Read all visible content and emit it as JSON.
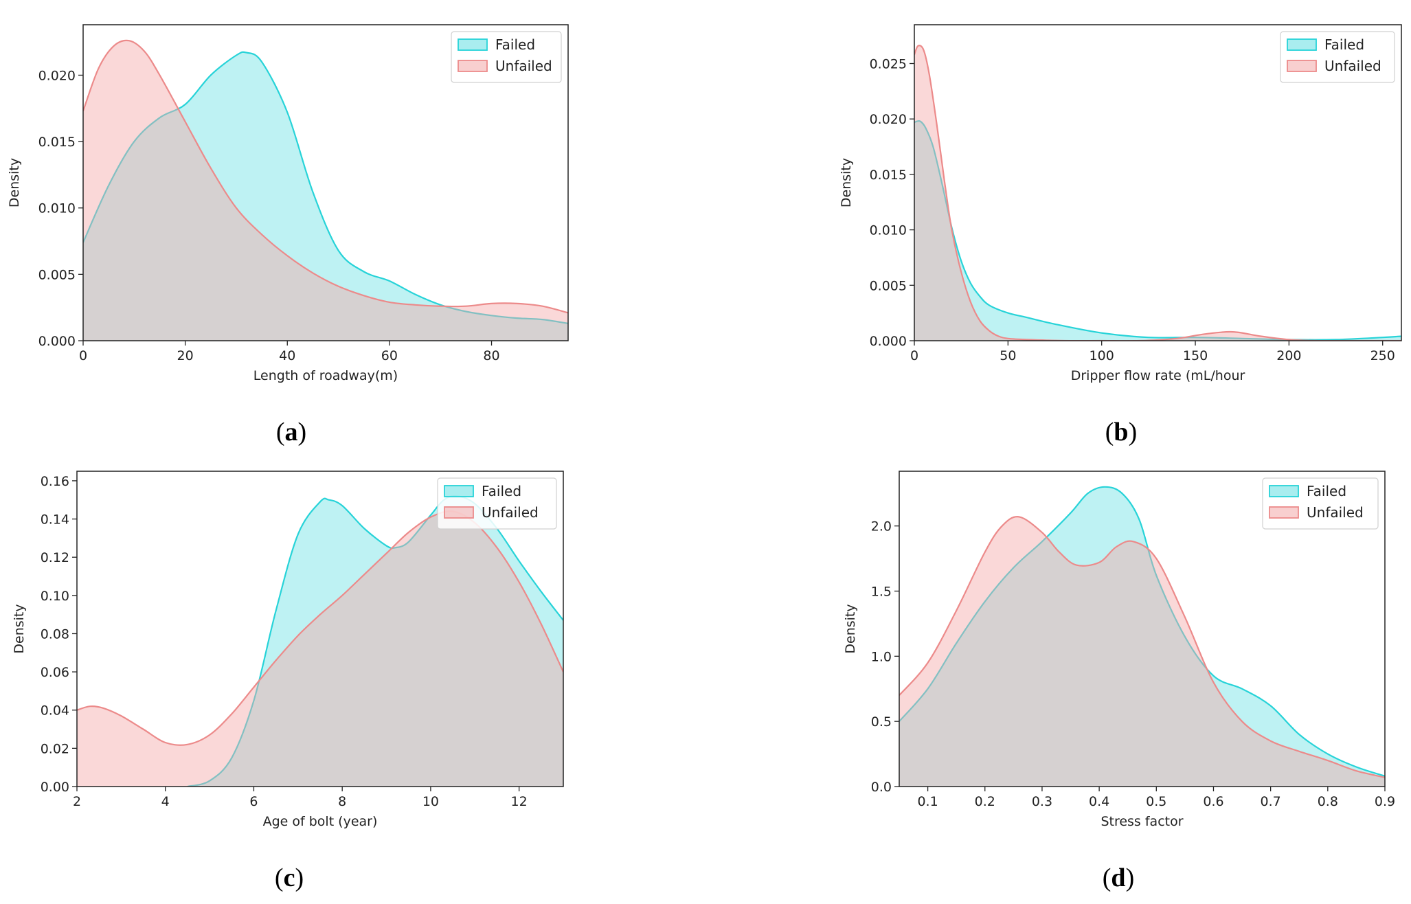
{
  "colors": {
    "failed_line": "#27d3d8",
    "failed_fill": "#27d3d8",
    "unfailed_line": "#ec8a8a",
    "unfailed_fill": "#f3a8a8"
  },
  "chart_data": [
    {
      "id": "a",
      "type": "area",
      "caption": "a",
      "xlabel": "Length of roadway(m)",
      "ylabel": "Density",
      "xlim": [
        0,
        95
      ],
      "ylim": [
        0,
        0.0238
      ],
      "xticks": [
        0,
        20,
        40,
        60,
        80
      ],
      "xtick_labels": [
        "0",
        "20",
        "40",
        "60",
        "80"
      ],
      "yticks": [
        0,
        0.005,
        0.01,
        0.015,
        0.02
      ],
      "ytick_labels": [
        "0.000",
        "0.005",
        "0.010",
        "0.015",
        "0.020"
      ],
      "legend": [
        "Failed",
        "Unfailed"
      ],
      "legend_position": "top-right",
      "series": [
        {
          "name": "Failed",
          "x": [
            0,
            5,
            10,
            15,
            20,
            25,
            30,
            32,
            35,
            40,
            45,
            50,
            55,
            60,
            65,
            70,
            75,
            80,
            85,
            90,
            95
          ],
          "y": [
            0.0074,
            0.0117,
            0.015,
            0.0168,
            0.0178,
            0.02,
            0.0215,
            0.0217,
            0.021,
            0.0172,
            0.0112,
            0.0068,
            0.0052,
            0.0045,
            0.0035,
            0.0027,
            0.0022,
            0.0019,
            0.0017,
            0.0016,
            0.0013
          ]
        },
        {
          "name": "Unfailed",
          "x": [
            0,
            3,
            6,
            9,
            12,
            15,
            20,
            25,
            30,
            35,
            40,
            45,
            50,
            55,
            60,
            65,
            70,
            75,
            80,
            85,
            90,
            95
          ],
          "y": [
            0.0173,
            0.0205,
            0.0222,
            0.0226,
            0.0218,
            0.02,
            0.0165,
            0.013,
            0.01,
            0.008,
            0.0064,
            0.0051,
            0.0041,
            0.0034,
            0.0029,
            0.0027,
            0.0026,
            0.0026,
            0.0028,
            0.0028,
            0.0026,
            0.0021
          ]
        }
      ]
    },
    {
      "id": "b",
      "type": "area",
      "caption": "b",
      "xlabel": "Dripper flow rate (mL/hour",
      "ylabel": "Density",
      "xlim": [
        0,
        260
      ],
      "ylim": [
        0,
        0.0285
      ],
      "xticks": [
        0,
        50,
        100,
        150,
        200,
        250
      ],
      "xtick_labels": [
        "0",
        "50",
        "100",
        "150",
        "200",
        "250"
      ],
      "yticks": [
        0,
        0.005,
        0.01,
        0.015,
        0.02,
        0.025
      ],
      "ytick_labels": [
        "0.000",
        "0.005",
        "0.010",
        "0.015",
        "0.020",
        "0.025"
      ],
      "legend": [
        "Failed",
        "Unfailed"
      ],
      "legend_position": "top-right",
      "series": [
        {
          "name": "Failed",
          "x": [
            0,
            3,
            6,
            10,
            15,
            20,
            25,
            30,
            35,
            40,
            50,
            60,
            75,
            100,
            125,
            150,
            175,
            200,
            225,
            250,
            260
          ],
          "y": [
            0.0197,
            0.0198,
            0.0192,
            0.0175,
            0.014,
            0.0102,
            0.0072,
            0.0052,
            0.004,
            0.0032,
            0.0025,
            0.0021,
            0.0015,
            0.0007,
            0.0003,
            0.0003,
            0.0002,
            0.0001,
            0.0001,
            0.0003,
            0.0004
          ]
        },
        {
          "name": "Unfailed",
          "x": [
            0,
            2,
            5,
            8,
            12,
            16,
            20,
            25,
            30,
            35,
            40,
            45,
            50,
            60,
            80,
            100,
            120,
            140,
            155,
            170,
            185,
            200,
            215,
            230,
            260
          ],
          "y": [
            0.0258,
            0.0266,
            0.0262,
            0.024,
            0.0195,
            0.0145,
            0.01,
            0.0062,
            0.0035,
            0.0018,
            0.0009,
            0.0004,
            0.0002,
            0.0001,
            0,
            0,
            0,
            0.0002,
            0.0006,
            0.0008,
            0.0004,
            0.0001,
            0,
            0,
            0
          ]
        }
      ]
    },
    {
      "id": "c",
      "type": "area",
      "caption": "c",
      "xlabel": "Age of bolt  (year)",
      "ylabel": "Density",
      "xlim": [
        2,
        13
      ],
      "ylim": [
        0,
        0.165
      ],
      "xticks": [
        2,
        4,
        6,
        8,
        10,
        12
      ],
      "xtick_labels": [
        "2",
        "4",
        "6",
        "8",
        "10",
        "12"
      ],
      "yticks": [
        0,
        0.02,
        0.04,
        0.06,
        0.08,
        0.1,
        0.12,
        0.14,
        0.16
      ],
      "ytick_labels": [
        "0.00",
        "0.02",
        "0.04",
        "0.06",
        "0.08",
        "0.10",
        "0.12",
        "0.14",
        "0.16"
      ],
      "legend": [
        "Failed",
        "Unfailed"
      ],
      "legend_position": "top-right",
      "series": [
        {
          "name": "Failed",
          "x": [
            4.5,
            5.0,
            5.5,
            6.0,
            6.5,
            7.0,
            7.5,
            7.7,
            8.0,
            8.5,
            9.0,
            9.2,
            9.5,
            10.0,
            10.3,
            10.6,
            11.0,
            11.5,
            12.0,
            12.5,
            13.0
          ],
          "y": [
            0,
            0.003,
            0.015,
            0.045,
            0.092,
            0.132,
            0.149,
            0.15,
            0.147,
            0.135,
            0.126,
            0.125,
            0.128,
            0.142,
            0.15,
            0.152,
            0.148,
            0.135,
            0.118,
            0.102,
            0.087
          ]
        },
        {
          "name": "Unfailed",
          "x": [
            2.0,
            2.3,
            2.6,
            3.0,
            3.5,
            4.0,
            4.5,
            5.0,
            5.5,
            6.0,
            6.5,
            7.0,
            7.5,
            8.0,
            8.5,
            9.0,
            9.5,
            10.0,
            10.5,
            11.0,
            11.5,
            12.0,
            12.5,
            13.0
          ],
          "y": [
            0.04,
            0.042,
            0.041,
            0.037,
            0.03,
            0.023,
            0.022,
            0.027,
            0.038,
            0.052,
            0.066,
            0.079,
            0.09,
            0.1,
            0.111,
            0.122,
            0.133,
            0.141,
            0.144,
            0.138,
            0.125,
            0.107,
            0.085,
            0.06
          ]
        }
      ]
    },
    {
      "id": "d",
      "type": "area",
      "caption": "d",
      "xlabel": "Stress factor",
      "ylabel": "Density",
      "xlim": [
        0.05,
        0.9
      ],
      "ylim": [
        0,
        2.42
      ],
      "xticks": [
        0.1,
        0.2,
        0.3,
        0.4,
        0.5,
        0.6,
        0.7,
        0.8,
        0.9
      ],
      "xtick_labels": [
        "0.1",
        "0.2",
        "0.3",
        "0.4",
        "0.5",
        "0.6",
        "0.7",
        "0.8",
        "0.9"
      ],
      "yticks": [
        0,
        0.5,
        1.0,
        1.5,
        2.0
      ],
      "ytick_labels": [
        "0.0",
        "0.5",
        "1.0",
        "1.5",
        "2.0"
      ],
      "legend": [
        "Failed",
        "Unfailed"
      ],
      "legend_position": "top-right",
      "series": [
        {
          "name": "Failed",
          "x": [
            0.05,
            0.1,
            0.15,
            0.2,
            0.25,
            0.3,
            0.35,
            0.38,
            0.41,
            0.44,
            0.47,
            0.5,
            0.55,
            0.6,
            0.65,
            0.7,
            0.75,
            0.8,
            0.85,
            0.9
          ],
          "y": [
            0.5,
            0.75,
            1.1,
            1.42,
            1.68,
            1.88,
            2.1,
            2.25,
            2.3,
            2.25,
            2.05,
            1.62,
            1.15,
            0.85,
            0.75,
            0.62,
            0.4,
            0.25,
            0.15,
            0.08
          ]
        },
        {
          "name": "Unfailed",
          "x": [
            0.05,
            0.1,
            0.15,
            0.2,
            0.23,
            0.26,
            0.3,
            0.33,
            0.36,
            0.4,
            0.43,
            0.46,
            0.5,
            0.55,
            0.6,
            0.65,
            0.7,
            0.75,
            0.8,
            0.85,
            0.9
          ],
          "y": [
            0.7,
            0.95,
            1.35,
            1.8,
            2.0,
            2.07,
            1.95,
            1.8,
            1.7,
            1.72,
            1.84,
            1.88,
            1.75,
            1.3,
            0.8,
            0.5,
            0.35,
            0.27,
            0.2,
            0.12,
            0.07
          ]
        }
      ]
    }
  ]
}
